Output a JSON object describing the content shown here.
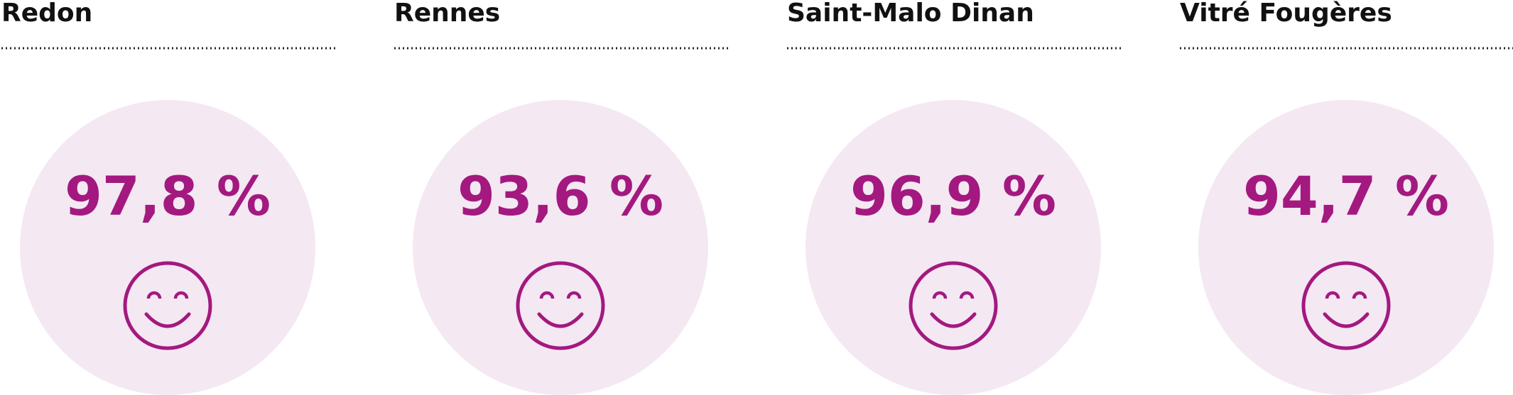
{
  "items": [
    {
      "name": "Redon",
      "value": "97,8 %"
    },
    {
      "name": "Rennes",
      "value": "93,6 %"
    },
    {
      "name": "Saint-Malo Dinan",
      "value": "96,9 %"
    },
    {
      "name": "Vitré Fougères",
      "value": "94,7 %"
    }
  ]
}
